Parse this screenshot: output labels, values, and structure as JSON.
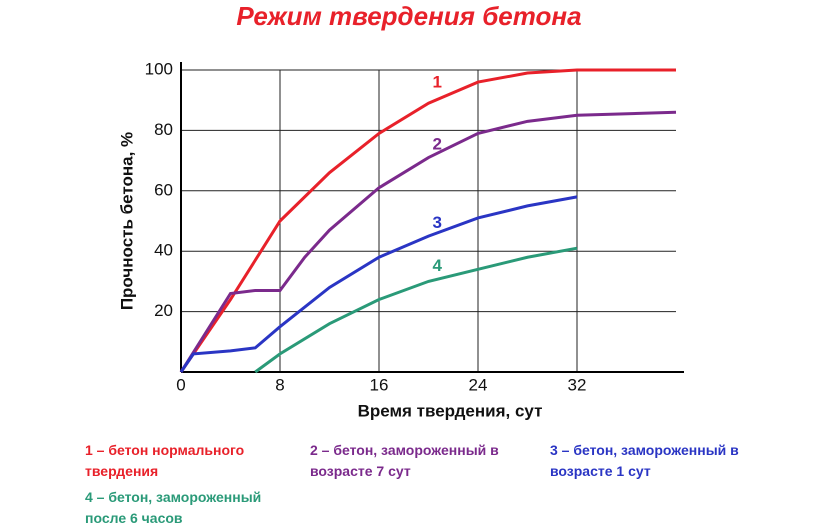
{
  "chart_data": {
    "type": "line",
    "title": "Режим твердения бетона",
    "x_label": "Время твердения, сут",
    "y_label": "Прочность бетона, %",
    "xlim": [
      0,
      40
    ],
    "xticks": [
      0,
      8,
      16,
      24,
      32
    ],
    "ylim": [
      0,
      100
    ],
    "yticks": [
      20,
      40,
      60,
      80,
      100
    ],
    "grid": true,
    "series": [
      {
        "name": "1",
        "color": "#e8212a",
        "x": [
          0,
          2,
          4,
          6,
          8,
          12,
          16,
          20,
          24,
          28,
          32,
          40
        ],
        "values": [
          0,
          12,
          24,
          37,
          50,
          66,
          79,
          89,
          96,
          99,
          100,
          100
        ]
      },
      {
        "name": "2",
        "color": "#7b2a8c",
        "x": [
          0,
          2,
          4,
          6,
          8,
          10,
          12,
          16,
          20,
          24,
          28,
          32,
          40
        ],
        "values": [
          0,
          13,
          26,
          27,
          27,
          38,
          47,
          61,
          71,
          79,
          83,
          85,
          86
        ]
      },
      {
        "name": "3",
        "color": "#2a35c4",
        "x": [
          0,
          1,
          4,
          6,
          8,
          12,
          16,
          20,
          24,
          28,
          32
        ],
        "values": [
          0,
          6,
          7,
          8,
          15,
          28,
          38,
          45,
          51,
          55,
          58
        ]
      },
      {
        "name": "4",
        "color": "#2a9a78",
        "x": [
          6,
          8,
          12,
          16,
          20,
          24,
          28,
          32
        ],
        "values": [
          0,
          6,
          16,
          24,
          30,
          34,
          38,
          41
        ]
      }
    ],
    "legend": [
      "1 – бетон нормального твердения",
      "2 – бетон, замороженный в возрасте 7 сут",
      "3 – бетон, замороженный в возрасте 1 сут",
      "4 – бетон, замороженный после 6 часов"
    ]
  }
}
